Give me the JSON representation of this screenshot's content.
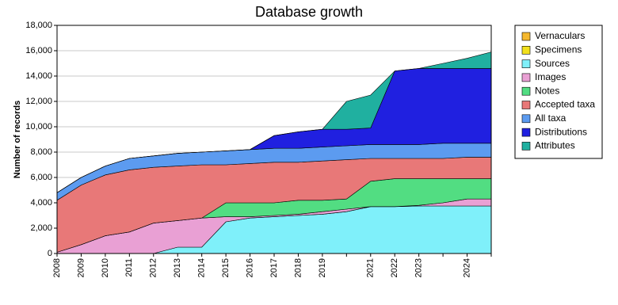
{
  "chart_data": {
    "type": "area",
    "stacked": true,
    "title": "Database growth",
    "y_label": "Number of records",
    "categories": [
      "2008",
      "2009",
      "2010",
      "2011",
      "2012",
      "2013",
      "2014",
      "2015",
      "2016",
      "2017",
      "2018",
      "2019",
      null,
      "2021",
      "2022",
      "2023",
      null,
      "2024",
      null
    ],
    "ylim": [
      0,
      18000
    ],
    "yticks": [
      0,
      {
        "value": 2000,
        "label": "2,000"
      },
      {
        "value": 4000,
        "label": "4,000"
      },
      {
        "value": 6000,
        "label": "6,000"
      },
      {
        "value": 8000,
        "label": "8,000"
      },
      {
        "value": 10000,
        "label": "10,000"
      },
      {
        "value": 12000,
        "label": "12,000"
      },
      {
        "value": 14000,
        "label": "14,000"
      },
      {
        "value": 16000,
        "label": "16,000"
      },
      {
        "value": 18000,
        "label": "18,000"
      }
    ],
    "grid": true,
    "legend": "right",
    "series": [
      {
        "name": "Vernaculars",
        "color": "#f5b82e",
        "values": [
          0,
          0,
          0,
          0,
          0,
          0,
          0,
          0,
          0,
          0,
          0,
          0,
          0,
          0,
          0,
          0,
          0,
          0,
          0
        ]
      },
      {
        "name": "Specimens",
        "color": "#f2e01c",
        "values": [
          0,
          0,
          0,
          0,
          0,
          0,
          0,
          0,
          0,
          0,
          0,
          0,
          0,
          0,
          0,
          0,
          0,
          0,
          0
        ]
      },
      {
        "name": "Sources",
        "color": "#7ff0fa",
        "values": [
          0,
          0,
          0,
          0,
          0,
          500,
          500,
          2500,
          2800,
          2900,
          3000,
          3100,
          3300,
          3700,
          3700,
          3750,
          3750,
          3750,
          3750
        ]
      },
      {
        "name": "Images",
        "color": "#e9a0d4",
        "values": [
          100,
          700,
          1400,
          1700,
          2400,
          2100,
          2300,
          400,
          100,
          100,
          100,
          200,
          200,
          0,
          0,
          50,
          250,
          550,
          550
        ]
      },
      {
        "name": "Notes",
        "color": "#52dd82",
        "values": [
          0,
          0,
          0,
          0,
          0,
          0,
          0,
          1100,
          1100,
          1000,
          1100,
          900,
          800,
          2000,
          2200,
          2100,
          1900,
          1600,
          1600
        ]
      },
      {
        "name": "Accepted taxa",
        "color": "#e87878",
        "values": [
          4100,
          4700,
          4800,
          4900,
          4400,
          4300,
          4200,
          3000,
          3100,
          3200,
          3000,
          3100,
          3100,
          1800,
          1600,
          1600,
          1600,
          1700,
          1700
        ]
      },
      {
        "name": "All taxa",
        "color": "#5c9bf0",
        "values": [
          600,
          600,
          700,
          900,
          900,
          1000,
          1000,
          1100,
          1100,
          1100,
          1100,
          1100,
          1100,
          1100,
          1100,
          1100,
          1200,
          1100,
          1100
        ]
      },
      {
        "name": "Distributions",
        "color": "#2020e0",
        "values": [
          0,
          0,
          0,
          0,
          0,
          0,
          0,
          0,
          0,
          1000,
          1300,
          1400,
          1300,
          1300,
          5800,
          6000,
          5900,
          5900,
          5900
        ]
      },
      {
        "name": "Attributes",
        "color": "#20b0a0",
        "values": [
          0,
          0,
          0,
          0,
          0,
          0,
          0,
          0,
          0,
          0,
          0,
          0,
          2200,
          2600,
          0,
          0,
          400,
          800,
          1300
        ]
      }
    ]
  }
}
